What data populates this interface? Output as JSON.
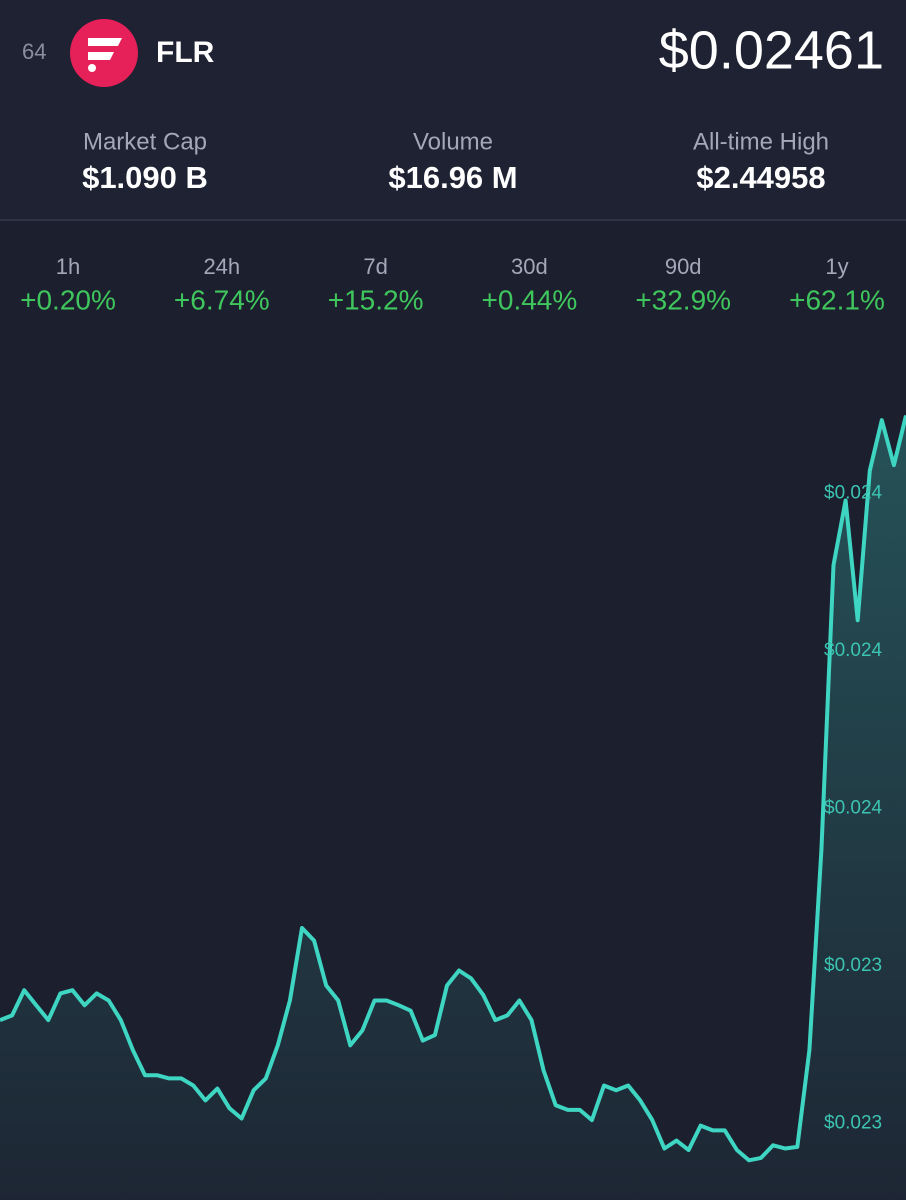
{
  "header": {
    "rank": "64",
    "symbol": "FLR",
    "price": "$0.02461"
  },
  "stats": [
    {
      "label": "Market Cap",
      "value": "$1.090 B"
    },
    {
      "label": "Volume",
      "value": "$16.96 M"
    },
    {
      "label": "All-time High",
      "value": "$2.44958"
    }
  ],
  "changes": [
    {
      "period": "1h",
      "value": "+0.20%"
    },
    {
      "period": "24h",
      "value": "+6.74%"
    },
    {
      "period": "7d",
      "value": "+15.2%"
    },
    {
      "period": "30d",
      "value": "+0.44%"
    },
    {
      "period": "90d",
      "value": "+32.9%"
    },
    {
      "period": "1y",
      "value": "+62.1%"
    }
  ],
  "chart_data": {
    "type": "line",
    "color": "#3ed6c2",
    "values": [
      0.023331,
      0.023337,
      0.023369,
      0.02335,
      0.023331,
      0.023365,
      0.023369,
      0.02335,
      0.023365,
      0.023356,
      0.023331,
      0.023293,
      0.023261,
      0.023261,
      0.023257,
      0.023257,
      0.023248,
      0.023229,
      0.023244,
      0.023219,
      0.023206,
      0.023242,
      0.023257,
      0.023299,
      0.023356,
      0.023448,
      0.023432,
      0.023375,
      0.023356,
      0.023299,
      0.023318,
      0.023356,
      0.023356,
      0.02335,
      0.023343,
      0.023305,
      0.023312,
      0.023375,
      0.023394,
      0.023384,
      0.023363,
      0.023331,
      0.023337,
      0.023356,
      0.023331,
      0.023267,
      0.023223,
      0.023217,
      0.023217,
      0.023204,
      0.023248,
      0.023242,
      0.023248,
      0.023229,
      0.023204,
      0.023168,
      0.023178,
      0.023166,
      0.023197,
      0.023191,
      0.023191,
      0.023166,
      0.023153,
      0.023156,
      0.023172,
      0.023168,
      0.02317,
      0.023293,
      0.023547,
      0.023909,
      0.023991,
      0.023839,
      0.024029,
      0.024093,
      0.024036,
      0.024099
    ],
    "ylim": [
      0.0231,
      0.0242
    ],
    "yticks": [
      {
        "value": 0.024,
        "label": "$0.024"
      },
      {
        "value": 0.0238,
        "label": "$0.024"
      },
      {
        "value": 0.0236,
        "label": "$0.024"
      },
      {
        "value": 0.0234,
        "label": "$0.023"
      },
      {
        "value": 0.0232,
        "label": "$0.023"
      }
    ]
  }
}
